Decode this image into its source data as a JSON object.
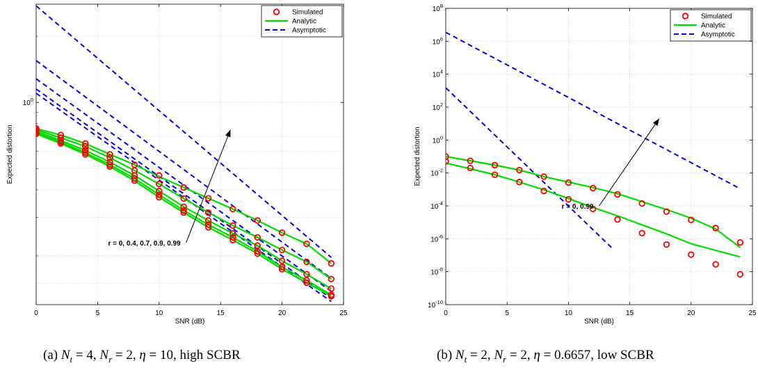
{
  "captions": [
    {
      "tag": "(a)",
      "parts": [
        [
          "N",
          "t",
          " = 4, "
        ],
        [
          "N",
          "r",
          " = 2, "
        ],
        [
          "η",
          "",
          " = 10, high SCBR"
        ]
      ]
    },
    {
      "tag": "(b)",
      "parts": [
        [
          "N",
          "t",
          " = 2, "
        ],
        [
          "N",
          "r",
          " = 2, "
        ],
        [
          "η",
          "",
          " = 0.6657, low SCBR"
        ]
      ]
    }
  ],
  "colors": {
    "simulated": "#ff0000",
    "analytic": "#00dd00",
    "asymptotic": "#0000ee",
    "grid": "#c8c8c8"
  },
  "chart_data": [
    {
      "type": "line",
      "xlabel": "SNR (dB)",
      "ylabel": "Expected distortion",
      "xlim": [
        0,
        25
      ],
      "ylim": [
        0.12,
        2.8
      ],
      "yscale": "log",
      "xticks": [
        0,
        5,
        10,
        15,
        20,
        25
      ],
      "yticks": [
        {
          "value": 1,
          "label": "10^0"
        }
      ],
      "grid": true,
      "legend": {
        "position": "top-right",
        "entries": [
          "Simulated",
          "Analytic",
          "Asymptotic"
        ]
      },
      "annotation": {
        "text": "r = 0, 0.4, 0.7, 0.9, 0.99",
        "from": [
          12.2,
          0.23
        ],
        "to": [
          15.8,
          0.75
        ]
      },
      "series": [
        {
          "r": 0.99,
          "x": [
            0,
            2,
            4,
            6,
            8,
            10,
            12,
            14,
            16,
            18,
            20,
            22,
            24
          ],
          "analytic": [
            0.76,
            0.71,
            0.65,
            0.58,
            0.52,
            0.46,
            0.41,
            0.366,
            0.327,
            0.29,
            0.255,
            0.227,
            0.185
          ],
          "simulated": [
            0.76,
            0.71,
            0.65,
            0.58,
            0.52,
            0.465,
            0.41,
            0.366,
            0.327,
            0.29,
            0.255,
            0.227,
            0.185
          ],
          "asymptotic_x": [
            0,
            24
          ],
          "asymptotic_y": [
            2.75,
            0.197
          ]
        },
        {
          "r": 0.9,
          "x": [
            0,
            2,
            4,
            6,
            8,
            10,
            12,
            14,
            16,
            18,
            20,
            22,
            24
          ],
          "analytic": [
            0.75,
            0.69,
            0.63,
            0.56,
            0.49,
            0.425,
            0.365,
            0.315,
            0.275,
            0.243,
            0.213,
            0.188,
            0.157
          ],
          "simulated": [
            0.75,
            0.69,
            0.63,
            0.56,
            0.49,
            0.425,
            0.365,
            0.315,
            0.275,
            0.243,
            0.213,
            0.188,
            0.157
          ],
          "asymptotic_x": [
            0,
            24
          ],
          "asymptotic_y": [
            1.55,
            0.158
          ]
        },
        {
          "r": 0.7,
          "x": [
            0,
            2,
            4,
            6,
            8,
            10,
            12,
            14,
            16,
            18,
            20,
            22,
            24
          ],
          "analytic": [
            0.74,
            0.67,
            0.605,
            0.535,
            0.465,
            0.395,
            0.335,
            0.29,
            0.253,
            0.223,
            0.19,
            0.165,
            0.142
          ],
          "simulated": [
            0.74,
            0.67,
            0.605,
            0.535,
            0.465,
            0.395,
            0.335,
            0.29,
            0.253,
            0.223,
            0.19,
            0.165,
            0.142
          ],
          "asymptotic_x": [
            0,
            24
          ],
          "asymptotic_y": [
            1.28,
            0.138
          ]
        },
        {
          "r": 0.4,
          "x": [
            0,
            2,
            4,
            6,
            8,
            10,
            12,
            14,
            16,
            18,
            20,
            22,
            24
          ],
          "analytic": [
            0.73,
            0.66,
            0.59,
            0.52,
            0.45,
            0.38,
            0.322,
            0.278,
            0.243,
            0.21,
            0.178,
            0.155,
            0.133
          ],
          "simulated": [
            0.73,
            0.66,
            0.59,
            0.52,
            0.45,
            0.38,
            0.322,
            0.278,
            0.243,
            0.21,
            0.178,
            0.155,
            0.133
          ],
          "asymptotic_x": [
            0,
            24
          ],
          "asymptotic_y": [
            1.15,
            0.128
          ]
        },
        {
          "r": 0,
          "x": [
            0,
            2,
            4,
            6,
            8,
            10,
            12,
            14,
            16,
            18,
            20,
            22,
            24
          ],
          "analytic": [
            0.72,
            0.65,
            0.58,
            0.51,
            0.44,
            0.37,
            0.315,
            0.27,
            0.236,
            0.205,
            0.174,
            0.151,
            0.131
          ],
          "simulated": [
            0.72,
            0.65,
            0.58,
            0.51,
            0.44,
            0.37,
            0.315,
            0.27,
            0.236,
            0.205,
            0.174,
            0.151,
            0.131
          ],
          "asymptotic_x": [
            0,
            24
          ],
          "asymptotic_y": [
            1.1,
            0.124
          ]
        }
      ]
    },
    {
      "type": "line",
      "xlabel": "SNR (dB)",
      "ylabel": "Expected distortion",
      "xlim": [
        0,
        25
      ],
      "ylim": [
        1e-10,
        100000000.0
      ],
      "yscale": "log",
      "xticks": [
        0,
        5,
        10,
        15,
        20,
        25
      ],
      "yticks": [
        {
          "value": 1e-10,
          "label": "10^-10"
        },
        {
          "value": 1e-08,
          "label": "10^-8"
        },
        {
          "value": 1e-06,
          "label": "10^-6"
        },
        {
          "value": 0.0001,
          "label": "10^-4"
        },
        {
          "value": 0.01,
          "label": "10^-2"
        },
        {
          "value": 1,
          "label": "10^0"
        },
        {
          "value": 100.0,
          "label": "10^2"
        },
        {
          "value": 10000.0,
          "label": "10^4"
        },
        {
          "value": 1000000.0,
          "label": "10^6"
        },
        {
          "value": 100000000.0,
          "label": "10^8"
        }
      ],
      "grid": true,
      "legend": {
        "position": "top-right",
        "entries": [
          "Simulated",
          "Analytic",
          "Asymptotic"
        ]
      },
      "annotation": {
        "text": "r = 0, 0.99",
        "from": [
          12.5,
          0.0001
        ],
        "to": [
          17.4,
          20
        ]
      },
      "series": [
        {
          "r": 0.99,
          "x": [
            0,
            2,
            4,
            6,
            8,
            10,
            12,
            14,
            16,
            18,
            20,
            22,
            24
          ],
          "analytic": [
            0.1,
            0.055,
            0.03,
            0.015,
            0.006,
            0.0028,
            0.0013,
            0.00055,
            0.00018,
            6e-05,
            1.8e-05,
            4e-06,
            3e-07
          ],
          "simulated": [
            0.1,
            0.055,
            0.03,
            0.015,
            0.006,
            0.0026,
            0.0012,
            0.0005,
            0.00014,
            4.5e-05,
            1.4e-05,
            4.5e-06,
            6e-07
          ],
          "asymptotic_x": [
            0,
            24
          ],
          "asymptotic_y": [
            3500000.0,
            0.0011
          ]
        },
        {
          "r": 0,
          "x": [
            0,
            2,
            4,
            6,
            8,
            10,
            12,
            14,
            16,
            18,
            20,
            22,
            24
          ],
          "analytic": [
            0.04,
            0.018,
            0.0078,
            0.0028,
            0.00095,
            0.00028,
            8e-05,
            2.5e-05,
            7e-06,
            2e-06,
            5e-07,
            2e-07,
            8e-08
          ],
          "simulated": [
            0.05,
            0.02,
            0.0078,
            0.0028,
            0.0008,
            0.00025,
            6.5e-05,
            1.5e-05,
            2.2e-06,
            4.5e-07,
            1.1e-07,
            2.8e-08,
            7e-09
          ],
          "asymptotic_x": [
            0,
            13.5
          ],
          "asymptotic_y": [
            1500,
            3e-07
          ]
        }
      ]
    }
  ]
}
